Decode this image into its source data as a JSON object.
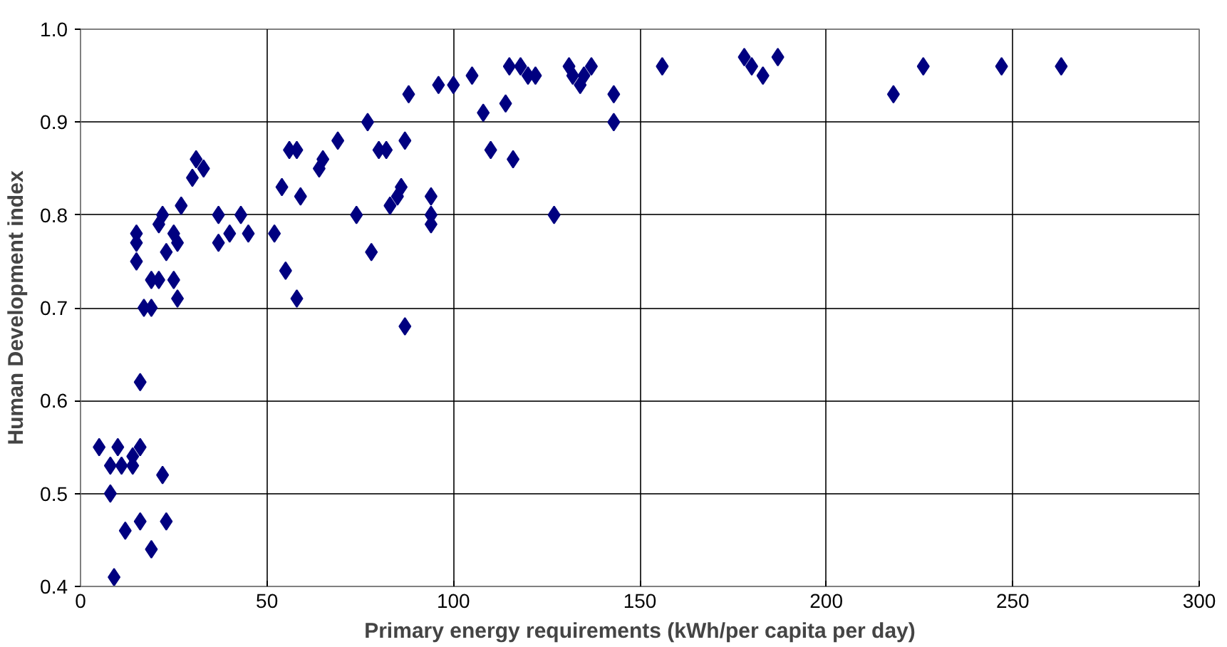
{
  "chart_data": {
    "type": "scatter",
    "xlabel": "Primary energy requirements (kWh/per capita per day)",
    "ylabel": "Human Development index",
    "xlim": [
      0,
      300
    ],
    "xticks": [
      0,
      50,
      100,
      150,
      200,
      250,
      300
    ],
    "ylim": [
      0.4,
      1.0
    ],
    "yticks": [
      {
        "value": 0.4,
        "label": "0.4"
      },
      {
        "value": 0.5,
        "label": "0.5"
      },
      {
        "value": 0.6,
        "label": "0.6"
      },
      {
        "value": 0.7,
        "label": "0.7"
      },
      {
        "value": 0.8,
        "label": "0.8"
      },
      {
        "value": 0.9,
        "label": "0.9"
      },
      {
        "value": 1.0,
        "label": "1.0"
      }
    ],
    "grid": true,
    "marker": "diamond",
    "series": [
      {
        "color": "#000080",
        "x": [
          5,
          8,
          8,
          9,
          10,
          11,
          12,
          14,
          14,
          15,
          15,
          15,
          16,
          16,
          16,
          17,
          19,
          19,
          19,
          21,
          21,
          22,
          22,
          23,
          23,
          25,
          25,
          26,
          26,
          27,
          30,
          31,
          33,
          37,
          37,
          40,
          43,
          45,
          52,
          54,
          55,
          56,
          58,
          58,
          59,
          64,
          65,
          69,
          74,
          77,
          78,
          80,
          82,
          83,
          85,
          86,
          87,
          87,
          88,
          94,
          94,
          94,
          96,
          100,
          105,
          108,
          110,
          114,
          115,
          116,
          118,
          120,
          122,
          127,
          131,
          132,
          134,
          135,
          137,
          143,
          143,
          156,
          178,
          180,
          183,
          187,
          218,
          226,
          247,
          263
        ],
        "values": [
          0.55,
          0.5,
          0.53,
          0.41,
          0.55,
          0.53,
          0.46,
          0.54,
          0.53,
          0.75,
          0.78,
          0.77,
          0.62,
          0.55,
          0.47,
          0.7,
          0.44,
          0.73,
          0.7,
          0.79,
          0.73,
          0.8,
          0.52,
          0.47,
          0.76,
          0.78,
          0.73,
          0.77,
          0.71,
          0.81,
          0.84,
          0.86,
          0.85,
          0.77,
          0.8,
          0.78,
          0.8,
          0.78,
          0.78,
          0.83,
          0.74,
          0.87,
          0.87,
          0.71,
          0.82,
          0.85,
          0.86,
          0.88,
          0.8,
          0.9,
          0.76,
          0.87,
          0.87,
          0.81,
          0.82,
          0.83,
          0.88,
          0.68,
          0.93,
          0.82,
          0.8,
          0.79,
          0.94,
          0.94,
          0.95,
          0.91,
          0.87,
          0.92,
          0.96,
          0.86,
          0.96,
          0.95,
          0.95,
          0.8,
          0.96,
          0.95,
          0.94,
          0.95,
          0.96,
          0.93,
          0.9,
          0.96,
          0.97,
          0.96,
          0.95,
          0.97,
          0.93,
          0.96,
          0.96,
          0.96
        ]
      }
    ]
  }
}
